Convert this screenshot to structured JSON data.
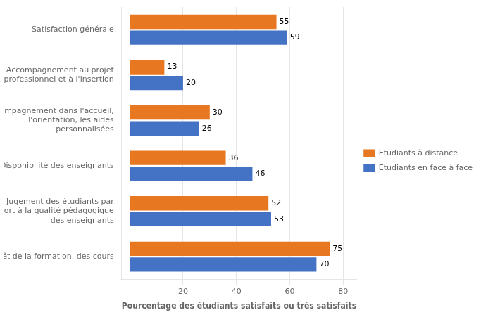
{
  "chart_data": {
    "type": "bar",
    "orientation": "horizontal",
    "categories": [
      "Intérêt de la formation, des cours",
      "Jugement des étudiants par\nrapport à la qualité pédagogique\ndes enseignants",
      "Disponibilité des enseignants",
      "Accompagnement dans l'accueil,\nl'orientation, les aides\npersonnalisées",
      "Accompagnement au projet\nprofessionnel et à l'insertion",
      "Satisfaction générale"
    ],
    "series": [
      {
        "name": "Etudiants à distance",
        "color": "#E87722",
        "values": [
          75,
          52,
          36,
          30,
          13,
          55
        ]
      },
      {
        "name": "Etudiants en face à face",
        "color": "#4472C4",
        "values": [
          70,
          53,
          46,
          26,
          20,
          59
        ]
      }
    ],
    "xlabel": "Pourcentage des étudiants satisfaits ou très satisfaits",
    "xlim": [
      -3,
      85
    ],
    "xticks": [
      {
        "value": 0,
        "label": "-"
      },
      20,
      40,
      60,
      80
    ],
    "grid": true,
    "legend": "right",
    "data_labels": true
  }
}
